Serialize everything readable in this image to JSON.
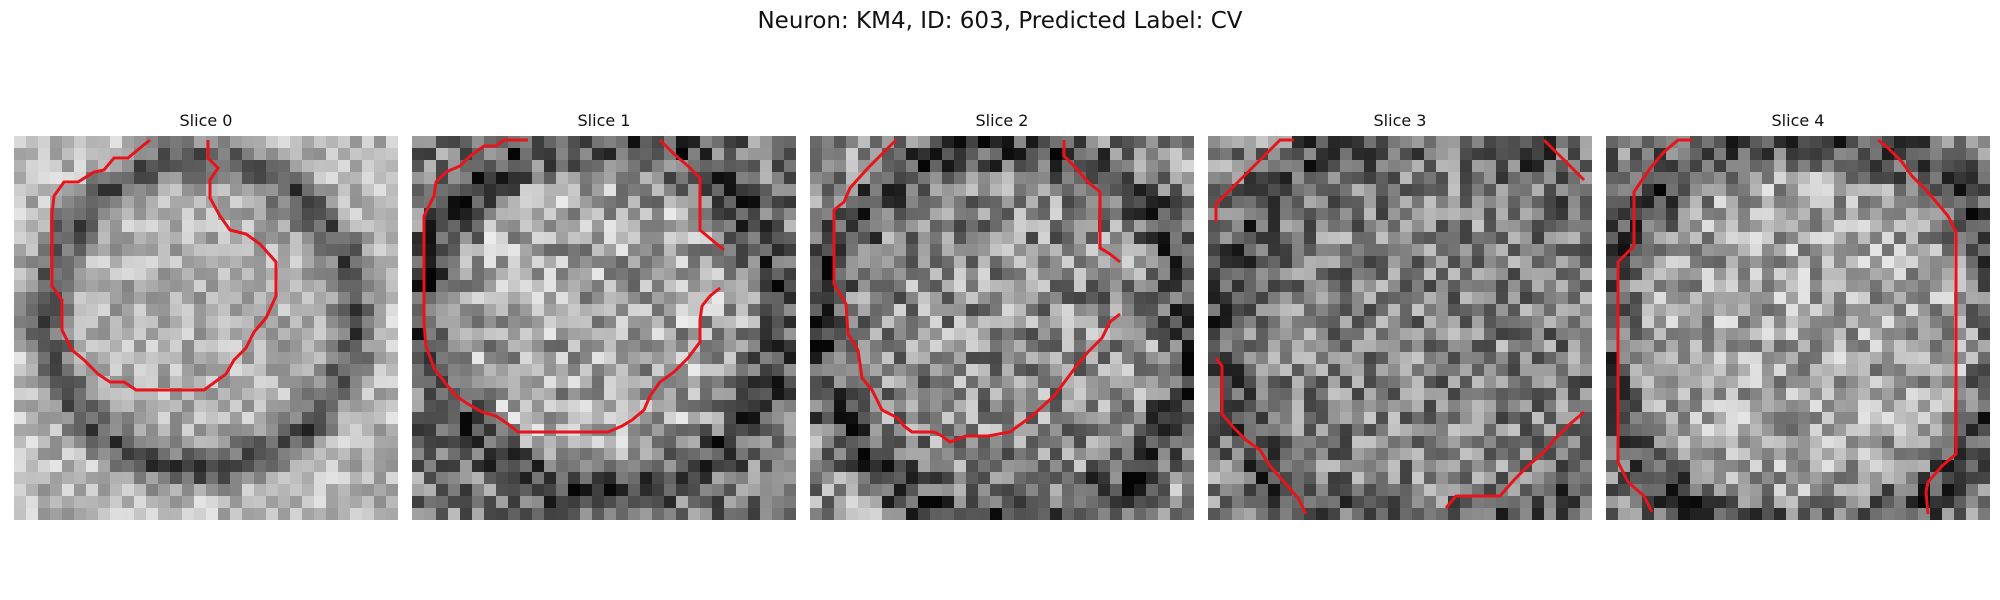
{
  "figure": {
    "title": "Neuron: KM4, ID: 603, Predicted Label: CV"
  },
  "panels": [
    {
      "title": "Slice 0"
    },
    {
      "title": "Slice 1"
    },
    {
      "title": "Slice 2"
    },
    {
      "title": "Slice 3"
    },
    {
      "title": "Slice 4"
    }
  ],
  "colors": {
    "contour": "#e8141b",
    "background": "#ffffff"
  }
}
